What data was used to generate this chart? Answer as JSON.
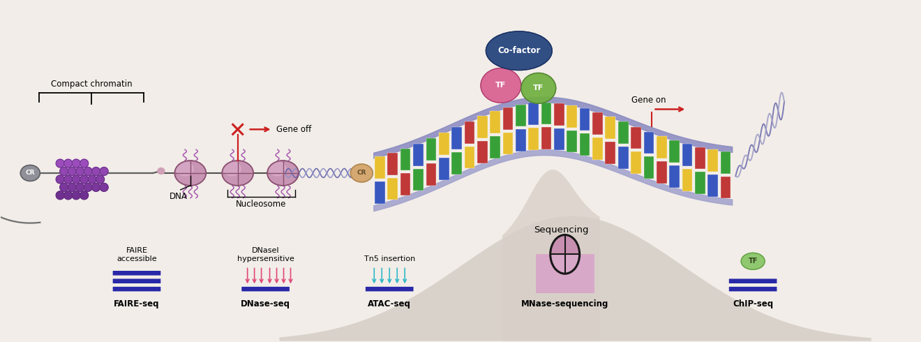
{
  "background_color": "#f2ede8",
  "fig_width": 13.2,
  "fig_height": 4.9,
  "labels": {
    "compact_chromatin": "Compact chromatin",
    "dna": "DNA",
    "nucleosome": "Nucleosome",
    "gene_off": "Gene off",
    "gene_on": "Gene on",
    "sequencing": "Sequencing",
    "cr": "CR",
    "cofactor": "Co-factor",
    "tf": "TF",
    "faire_accessible": "FAIRE\naccessible",
    "dnase_hypersensitive": "DNaseI\nhypersensitive",
    "tn5_insertion": "Tn5 insertion",
    "faire_seq": "FAIRE-seq",
    "dnase_seq": "DNase-seq",
    "atac_seq": "ATAC-seq",
    "mnase_sequencing": "MNase-sequencing",
    "chip_seq": "ChIP-seq"
  },
  "colors": {
    "background": "#f2ede8",
    "nucleosome_fill": "#c896b4",
    "nucleosome_edge": "#8a5070",
    "chromatin_dark": "#7a40a0",
    "chromatin_mid": "#9060b0",
    "chromatin_light": "#b080c0",
    "dna_line": "#5050a0",
    "cr_gray_fill": "#909098",
    "cr_gray_edge": "#606068",
    "cr_tan_fill": "#d4a870",
    "cr_tan_edge": "#b08850",
    "cofactor_fill": "#2a4880",
    "cofactor_edge": "#1a3060",
    "tf_pink_fill": "#d86090",
    "tf_pink_edge": "#b04070",
    "tf_green_fill": "#70b040",
    "tf_green_edge": "#508030",
    "red": "#cc2020",
    "bar_color": "#2828a8",
    "pink_arrow": "#e04878",
    "cyan_arrow": "#30b8c8",
    "mnase_fill_top": "#c890b0",
    "mnase_fill_bot": "#d8a8c8",
    "mnase_edge": "#181818",
    "tf_chip_fill": "#90c870",
    "tf_chip_edge": "#60a040",
    "histone_tail": "#a858b0",
    "dna_backbone": "#8888c0",
    "dna_backbone2": "#a0a0d0",
    "base_A": "#e8c030",
    "base_T": "#c03838",
    "base_G": "#38a038",
    "base_C": "#3858c0",
    "sequencing_hill": "#c8c0b8",
    "sequencing_peak": "#d0c8c0"
  }
}
